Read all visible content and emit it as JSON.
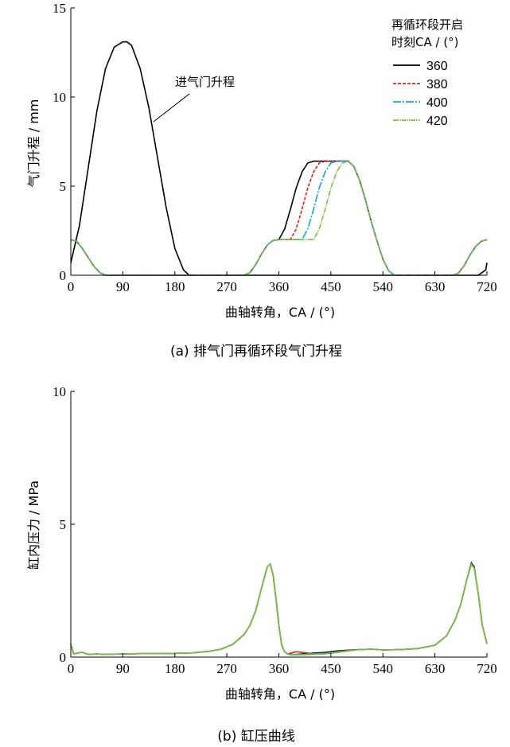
{
  "charts": {
    "a": {
      "caption": "(a)  排气门再循环段气门升程",
      "ylabel": "气门升程 / mm",
      "xlabel": "曲轴转角，CA / (°)",
      "annotation": "进气门升程",
      "legend_title_1": "再循环段开启",
      "legend_title_2": "时刻CA / (°)"
    },
    "b": {
      "caption": "(b)  缸压曲线",
      "ylabel": "缸内压力 / MPa",
      "xlabel": "曲轴转角，CA / (°)"
    }
  },
  "chart_data": [
    {
      "type": "line",
      "title": "(a)  排气门再循环段气门升程",
      "xlabel": "曲轴转角，CA / (°)",
      "ylabel": "气门升程 / mm",
      "xlim": [
        0,
        720
      ],
      "ylim": [
        0,
        15
      ],
      "xticks": [
        0,
        90,
        180,
        270,
        360,
        450,
        540,
        630,
        720
      ],
      "yticks": [
        0,
        5,
        10,
        15
      ],
      "legend_title": "再循环段开启时刻CA / (°)",
      "legend_position": "top-right",
      "annotation": "进气门升程",
      "intake_lift": {
        "x": [
          0,
          15,
          30,
          45,
          60,
          75,
          90,
          97,
          105,
          120,
          135,
          150,
          165,
          180,
          195,
          205,
          215,
          660,
          675,
          690,
          705,
          718,
          720
        ],
        "y": [
          0.7,
          2.8,
          6.0,
          9.2,
          11.6,
          12.8,
          13.1,
          13.1,
          12.9,
          11.6,
          9.4,
          6.6,
          3.8,
          1.5,
          0.3,
          0.0,
          0.0,
          0.0,
          0.0,
          0.0,
          0.0,
          0.3,
          0.7
        ]
      },
      "series": [
        {
          "name": "360",
          "color": "#000000",
          "dash": "solid",
          "x": [
            0,
            10,
            20,
            30,
            40,
            50,
            60,
            70,
            300,
            310,
            320,
            330,
            340,
            350,
            360,
            370,
            380,
            390,
            400,
            410,
            420,
            430,
            440,
            450,
            460,
            470,
            480,
            490,
            500,
            510,
            520,
            530,
            540,
            550,
            560,
            650,
            660,
            670,
            680,
            690,
            700,
            710,
            720
          ],
          "y": [
            2.0,
            1.9,
            1.5,
            1.0,
            0.5,
            0.15,
            0.0,
            0.0,
            0.0,
            0.15,
            0.6,
            1.2,
            1.7,
            1.95,
            2.0,
            2.6,
            3.7,
            4.9,
            5.8,
            6.3,
            6.4,
            6.4,
            6.4,
            6.4,
            6.4,
            6.4,
            6.4,
            6.1,
            5.3,
            4.2,
            3.0,
            1.9,
            0.9,
            0.25,
            0.0,
            0.0,
            0.0,
            0.1,
            0.5,
            1.1,
            1.6,
            1.9,
            2.0
          ]
        },
        {
          "name": "380",
          "color": "#d62020",
          "dash": "4,2",
          "x": [
            0,
            10,
            20,
            30,
            40,
            50,
            60,
            70,
            300,
            310,
            320,
            330,
            340,
            350,
            360,
            370,
            380,
            390,
            400,
            410,
            420,
            430,
            440,
            450,
            460,
            470,
            480,
            490,
            500,
            510,
            520,
            530,
            540,
            550,
            560,
            650,
            660,
            670,
            680,
            690,
            700,
            710,
            720
          ],
          "y": [
            2.0,
            1.9,
            1.5,
            1.0,
            0.5,
            0.15,
            0.0,
            0.0,
            0.0,
            0.15,
            0.6,
            1.2,
            1.7,
            1.95,
            2.0,
            2.0,
            2.0,
            2.6,
            3.7,
            4.9,
            5.8,
            6.3,
            6.4,
            6.4,
            6.4,
            6.4,
            6.4,
            6.1,
            5.3,
            4.2,
            3.0,
            1.9,
            0.9,
            0.25,
            0.0,
            0.0,
            0.0,
            0.1,
            0.5,
            1.1,
            1.6,
            1.9,
            2.0
          ]
        },
        {
          "name": "400",
          "color": "#1a9fe0",
          "dash": "10,2,2,2",
          "x": [
            0,
            10,
            20,
            30,
            40,
            50,
            60,
            70,
            300,
            310,
            320,
            330,
            340,
            350,
            360,
            370,
            380,
            390,
            400,
            410,
            420,
            430,
            440,
            450,
            460,
            470,
            480,
            490,
            500,
            510,
            520,
            530,
            540,
            550,
            560,
            650,
            660,
            670,
            680,
            690,
            700,
            710,
            720
          ],
          "y": [
            2.0,
            1.9,
            1.5,
            1.0,
            0.5,
            0.15,
            0.0,
            0.0,
            0.0,
            0.15,
            0.6,
            1.2,
            1.7,
            1.95,
            2.0,
            2.0,
            2.0,
            2.0,
            2.0,
            2.6,
            3.7,
            4.9,
            5.8,
            6.3,
            6.4,
            6.4,
            6.4,
            6.1,
            5.3,
            4.2,
            3.0,
            1.9,
            0.9,
            0.25,
            0.0,
            0.0,
            0.0,
            0.1,
            0.5,
            1.1,
            1.6,
            1.9,
            2.0
          ]
        },
        {
          "name": "420",
          "color": "#7cbd3a",
          "dash": "6,1,1,1,1,1",
          "x": [
            0,
            10,
            20,
            30,
            40,
            50,
            60,
            70,
            300,
            310,
            320,
            330,
            340,
            350,
            360,
            370,
            380,
            390,
            400,
            410,
            420,
            430,
            440,
            450,
            460,
            470,
            480,
            490,
            500,
            510,
            520,
            530,
            540,
            550,
            560,
            650,
            660,
            670,
            680,
            690,
            700,
            710,
            720
          ],
          "y": [
            2.0,
            1.9,
            1.5,
            1.0,
            0.5,
            0.15,
            0.0,
            0.0,
            0.0,
            0.15,
            0.6,
            1.2,
            1.7,
            1.95,
            2.0,
            2.0,
            2.0,
            2.0,
            2.0,
            2.0,
            2.0,
            2.6,
            3.7,
            4.9,
            5.8,
            6.3,
            6.4,
            6.1,
            5.3,
            4.2,
            3.0,
            1.9,
            0.9,
            0.25,
            0.0,
            0.0,
            0.0,
            0.1,
            0.5,
            1.1,
            1.6,
            1.9,
            2.0
          ]
        }
      ]
    },
    {
      "type": "line",
      "title": "(b)  缸压曲线",
      "xlabel": "曲轴转角，CA / (°)",
      "ylabel": "缸内压力 / MPa",
      "xlim": [
        0,
        720
      ],
      "ylim": [
        0,
        10
      ],
      "xticks": [
        0,
        90,
        180,
        270,
        360,
        450,
        540,
        630,
        720
      ],
      "yticks": [
        0,
        5,
        10
      ],
      "series": [
        {
          "name": "360",
          "color": "#000000",
          "x": [
            0,
            5,
            10,
            20,
            30,
            45,
            60,
            90,
            120,
            150,
            180,
            210,
            240,
            260,
            280,
            300,
            310,
            320,
            330,
            340,
            345,
            350,
            355,
            360,
            365,
            370,
            375,
            380,
            390,
            400,
            420,
            440,
            460,
            480,
            500,
            520,
            540,
            570,
            600,
            630,
            650,
            665,
            675,
            685,
            693,
            698,
            705,
            712,
            720
          ],
          "y": [
            0.5,
            0.12,
            0.15,
            0.18,
            0.1,
            0.12,
            0.1,
            0.12,
            0.13,
            0.13,
            0.14,
            0.16,
            0.22,
            0.3,
            0.48,
            0.85,
            1.2,
            1.75,
            2.6,
            3.4,
            3.5,
            3.1,
            2.2,
            1.2,
            0.45,
            0.2,
            0.12,
            0.1,
            0.1,
            0.12,
            0.15,
            0.18,
            0.23,
            0.26,
            0.28,
            0.3,
            0.27,
            0.28,
            0.32,
            0.45,
            0.8,
            1.4,
            2.0,
            2.9,
            3.55,
            3.4,
            2.4,
            1.2,
            0.5
          ]
        },
        {
          "name": "380",
          "color": "#d62020",
          "x": [
            0,
            5,
            10,
            20,
            30,
            45,
            60,
            90,
            120,
            150,
            180,
            210,
            240,
            260,
            280,
            300,
            310,
            320,
            330,
            340,
            345,
            350,
            355,
            360,
            365,
            370,
            375,
            380,
            390,
            400,
            420,
            440,
            460,
            480,
            500,
            520,
            540,
            570,
            600,
            630,
            650,
            665,
            675,
            685,
            693,
            698,
            705,
            712,
            720
          ],
          "y": [
            0.5,
            0.12,
            0.15,
            0.18,
            0.1,
            0.12,
            0.1,
            0.12,
            0.13,
            0.13,
            0.14,
            0.16,
            0.22,
            0.3,
            0.48,
            0.85,
            1.2,
            1.75,
            2.6,
            3.4,
            3.5,
            3.1,
            2.2,
            1.2,
            0.45,
            0.2,
            0.12,
            0.15,
            0.2,
            0.18,
            0.12,
            0.15,
            0.21,
            0.25,
            0.28,
            0.3,
            0.27,
            0.28,
            0.32,
            0.45,
            0.8,
            1.4,
            2.0,
            2.9,
            3.5,
            3.35,
            2.4,
            1.2,
            0.5
          ]
        },
        {
          "name": "400",
          "color": "#1a9fe0",
          "x": [
            0,
            5,
            10,
            20,
            30,
            45,
            60,
            90,
            120,
            150,
            180,
            210,
            240,
            260,
            280,
            300,
            310,
            320,
            330,
            340,
            345,
            350,
            355,
            360,
            365,
            370,
            375,
            380,
            390,
            400,
            420,
            440,
            460,
            480,
            500,
            520,
            540,
            570,
            600,
            630,
            650,
            665,
            675,
            685,
            693,
            698,
            705,
            712,
            720
          ],
          "y": [
            0.5,
            0.12,
            0.15,
            0.18,
            0.1,
            0.12,
            0.1,
            0.12,
            0.13,
            0.13,
            0.14,
            0.16,
            0.22,
            0.3,
            0.48,
            0.85,
            1.2,
            1.75,
            2.6,
            3.4,
            3.5,
            3.1,
            2.2,
            1.2,
            0.45,
            0.2,
            0.12,
            0.1,
            0.1,
            0.1,
            0.12,
            0.14,
            0.19,
            0.24,
            0.28,
            0.3,
            0.27,
            0.28,
            0.32,
            0.45,
            0.8,
            1.4,
            2.0,
            2.9,
            3.5,
            3.35,
            2.4,
            1.2,
            0.5
          ]
        },
        {
          "name": "420",
          "color": "#7cbd3a",
          "x": [
            0,
            5,
            10,
            20,
            30,
            45,
            60,
            90,
            120,
            150,
            180,
            210,
            240,
            260,
            280,
            300,
            310,
            320,
            330,
            340,
            345,
            350,
            355,
            360,
            365,
            370,
            375,
            380,
            390,
            400,
            420,
            440,
            460,
            480,
            500,
            520,
            540,
            570,
            600,
            630,
            650,
            665,
            675,
            685,
            693,
            698,
            705,
            712,
            720
          ],
          "y": [
            0.5,
            0.12,
            0.15,
            0.18,
            0.1,
            0.12,
            0.1,
            0.12,
            0.13,
            0.13,
            0.14,
            0.16,
            0.22,
            0.3,
            0.48,
            0.85,
            1.2,
            1.75,
            2.6,
            3.4,
            3.5,
            3.1,
            2.2,
            1.2,
            0.45,
            0.2,
            0.12,
            0.08,
            0.08,
            0.08,
            0.1,
            0.12,
            0.17,
            0.23,
            0.28,
            0.3,
            0.27,
            0.28,
            0.32,
            0.45,
            0.8,
            1.4,
            2.0,
            2.9,
            3.5,
            3.35,
            2.4,
            1.2,
            0.5
          ]
        }
      ]
    }
  ]
}
